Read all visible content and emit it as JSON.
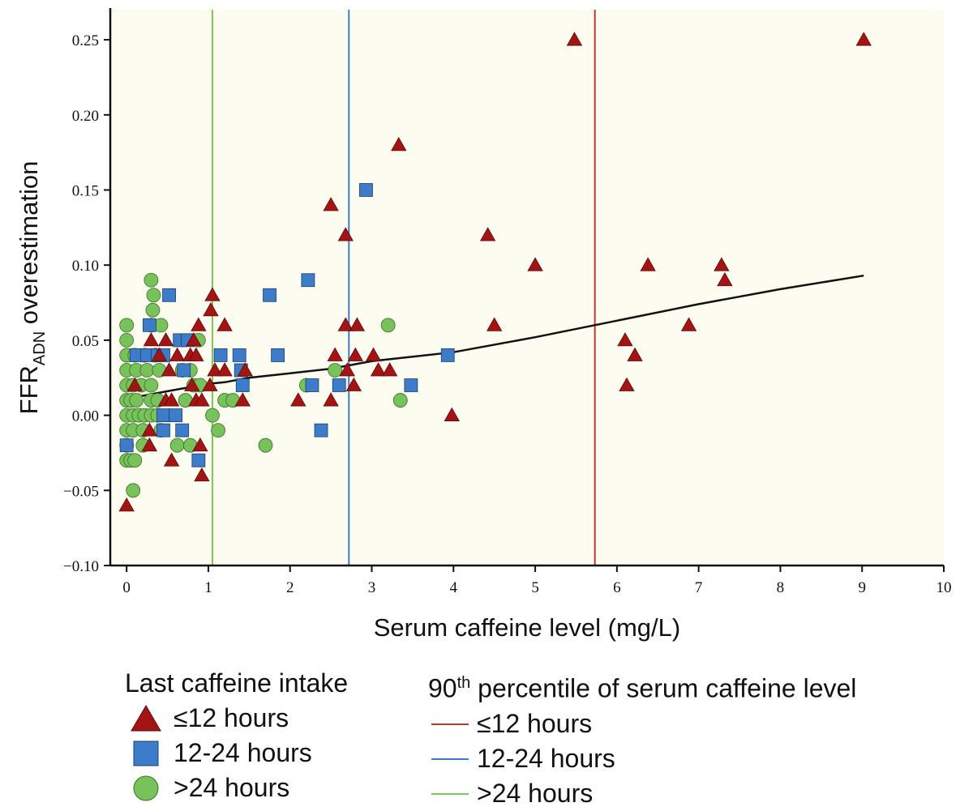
{
  "chart_data": {
    "type": "scatter",
    "xlabel": "Serum caffeine level (mg/L)",
    "ylabel_main": "FFR",
    "ylabel_sub": "ADN",
    "ylabel_rest": " overestimation",
    "xlim": [
      -0.2,
      10
    ],
    "ylim": [
      -0.1,
      0.27
    ],
    "xticks": [
      0,
      1,
      2,
      3,
      4,
      5,
      6,
      7,
      8,
      9,
      10
    ],
    "yticks": [
      -0.1,
      -0.05,
      0.0,
      0.05,
      0.1,
      0.15,
      0.2,
      0.25
    ],
    "xtick_labels": [
      "0",
      "1",
      "2",
      "3",
      "4",
      "5",
      "6",
      "7",
      "8",
      "9",
      "10"
    ],
    "ytick_labels": [
      "−0.10",
      "−0.05",
      "0.00",
      "0.05",
      "0.10",
      "0.15",
      "0.20",
      "0.25"
    ],
    "plot_background": "#fdfcf0",
    "series": [
      {
        "name": "≤12 hours",
        "marker": "triangle",
        "color": "#a31515",
        "points": [
          [
            5.48,
            0.25
          ],
          [
            9.02,
            0.25
          ],
          [
            3.33,
            0.18
          ],
          [
            2.5,
            0.14
          ],
          [
            2.68,
            0.12
          ],
          [
            4.42,
            0.12
          ],
          [
            5.0,
            0.1
          ],
          [
            6.38,
            0.1
          ],
          [
            7.28,
            0.1
          ],
          [
            7.32,
            0.09
          ],
          [
            1.05,
            0.08
          ],
          [
            1.03,
            0.07
          ],
          [
            0.88,
            0.06
          ],
          [
            1.2,
            0.06
          ],
          [
            2.68,
            0.06
          ],
          [
            2.82,
            0.06
          ],
          [
            4.5,
            0.06
          ],
          [
            6.88,
            0.06
          ],
          [
            6.1,
            0.05
          ],
          [
            0.3,
            0.05
          ],
          [
            0.48,
            0.05
          ],
          [
            0.82,
            0.05
          ],
          [
            6.22,
            0.04
          ],
          [
            0.62,
            0.04
          ],
          [
            0.78,
            0.04
          ],
          [
            0.85,
            0.04
          ],
          [
            2.55,
            0.04
          ],
          [
            2.8,
            0.04
          ],
          [
            3.02,
            0.04
          ],
          [
            0.4,
            0.04
          ],
          [
            1.08,
            0.03
          ],
          [
            1.2,
            0.03
          ],
          [
            1.45,
            0.03
          ],
          [
            3.08,
            0.03
          ],
          [
            3.22,
            0.03
          ],
          [
            2.7,
            0.03
          ],
          [
            0.52,
            0.03
          ],
          [
            6.12,
            0.02
          ],
          [
            2.78,
            0.02
          ],
          [
            1.02,
            0.02
          ],
          [
            0.8,
            0.02
          ],
          [
            0.1,
            0.02
          ],
          [
            1.42,
            0.01
          ],
          [
            2.1,
            0.01
          ],
          [
            2.5,
            0.01
          ],
          [
            0.85,
            0.01
          ],
          [
            0.92,
            0.01
          ],
          [
            0.48,
            0.01
          ],
          [
            0.55,
            0.01
          ],
          [
            3.98,
            0.0
          ],
          [
            0.28,
            -0.01
          ],
          [
            0.9,
            -0.02
          ],
          [
            0.28,
            -0.02
          ],
          [
            0.55,
            -0.03
          ],
          [
            0.92,
            -0.04
          ],
          [
            0.0,
            -0.06
          ]
        ]
      },
      {
        "name": "12-24 hours",
        "marker": "square",
        "color": "#3d7cc9",
        "points": [
          [
            2.93,
            0.15
          ],
          [
            2.22,
            0.09
          ],
          [
            0.52,
            0.08
          ],
          [
            1.75,
            0.08
          ],
          [
            0.28,
            0.06
          ],
          [
            0.65,
            0.05
          ],
          [
            0.75,
            0.05
          ],
          [
            0.12,
            0.04
          ],
          [
            0.25,
            0.04
          ],
          [
            0.38,
            0.04
          ],
          [
            0.45,
            0.04
          ],
          [
            1.38,
            0.04
          ],
          [
            1.85,
            0.04
          ],
          [
            3.93,
            0.04
          ],
          [
            1.15,
            0.04
          ],
          [
            1.4,
            0.03
          ],
          [
            0.7,
            0.03
          ],
          [
            1.42,
            0.02
          ],
          [
            2.27,
            0.02
          ],
          [
            2.6,
            0.02
          ],
          [
            3.48,
            0.02
          ],
          [
            0.45,
            0.0
          ],
          [
            0.6,
            0.0
          ],
          [
            2.38,
            -0.01
          ],
          [
            0.45,
            -0.01
          ],
          [
            0.68,
            -0.01
          ],
          [
            0.0,
            -0.02
          ],
          [
            0.88,
            -0.03
          ]
        ]
      },
      {
        "name": ">24 hours",
        "marker": "circle",
        "color": "#77c25a",
        "points": [
          [
            0.3,
            0.09
          ],
          [
            0.33,
            0.08
          ],
          [
            0.32,
            0.07
          ],
          [
            0.0,
            0.06
          ],
          [
            0.3,
            0.06
          ],
          [
            0.42,
            0.06
          ],
          [
            3.2,
            0.06
          ],
          [
            0.0,
            0.05
          ],
          [
            0.88,
            0.05
          ],
          [
            0.0,
            0.04
          ],
          [
            0.1,
            0.04
          ],
          [
            0.22,
            0.04
          ],
          [
            0.35,
            0.04
          ],
          [
            0.0,
            0.03
          ],
          [
            0.12,
            0.03
          ],
          [
            0.25,
            0.03
          ],
          [
            0.4,
            0.03
          ],
          [
            0.68,
            0.03
          ],
          [
            0.78,
            0.03
          ],
          [
            2.55,
            0.03
          ],
          [
            0.0,
            0.02
          ],
          [
            0.08,
            0.02
          ],
          [
            0.18,
            0.02
          ],
          [
            0.3,
            0.02
          ],
          [
            0.82,
            0.02
          ],
          [
            0.9,
            0.02
          ],
          [
            2.2,
            0.02
          ],
          [
            0.0,
            0.01
          ],
          [
            0.05,
            0.01
          ],
          [
            0.12,
            0.01
          ],
          [
            0.3,
            0.01
          ],
          [
            0.38,
            0.01
          ],
          [
            0.72,
            0.01
          ],
          [
            1.2,
            0.01
          ],
          [
            1.3,
            0.01
          ],
          [
            3.35,
            0.01
          ],
          [
            0.0,
            0.0
          ],
          [
            0.08,
            0.0
          ],
          [
            0.15,
            0.0
          ],
          [
            0.22,
            0.0
          ],
          [
            0.3,
            0.0
          ],
          [
            0.38,
            0.0
          ],
          [
            1.05,
            0.0
          ],
          [
            0.0,
            -0.01
          ],
          [
            0.08,
            -0.01
          ],
          [
            0.2,
            -0.01
          ],
          [
            0.42,
            -0.01
          ],
          [
            1.12,
            -0.01
          ],
          [
            0.0,
            -0.02
          ],
          [
            0.2,
            -0.02
          ],
          [
            0.62,
            -0.02
          ],
          [
            0.78,
            -0.02
          ],
          [
            1.7,
            -0.02
          ],
          [
            0.0,
            -0.03
          ],
          [
            0.05,
            -0.03
          ],
          [
            0.1,
            -0.03
          ],
          [
            0.08,
            -0.05
          ]
        ]
      }
    ],
    "trend_line": {
      "points": [
        [
          0.0,
          0.012
        ],
        [
          0.2,
          0.013
        ],
        [
          0.5,
          0.016
        ],
        [
          0.8,
          0.019
        ],
        [
          1.0,
          0.021
        ],
        [
          1.2,
          0.022
        ],
        [
          1.5,
          0.025
        ],
        [
          2.0,
          0.028
        ],
        [
          2.5,
          0.031
        ],
        [
          3.0,
          0.036
        ],
        [
          3.5,
          0.039
        ],
        [
          4.0,
          0.042
        ],
        [
          5.0,
          0.052
        ],
        [
          6.0,
          0.063
        ],
        [
          7.0,
          0.074
        ],
        [
          8.0,
          0.084
        ],
        [
          9.02,
          0.093
        ]
      ],
      "color": "#111111"
    },
    "percentile_lines": [
      {
        "name": "≤12 hours",
        "x": 5.73,
        "color": "#c0392b"
      },
      {
        "name": "12-24 hours",
        "x": 2.72,
        "color": "#3d7cc9"
      },
      {
        "name": ">24 hours",
        "x": 1.05,
        "color": "#7ec75a"
      }
    ],
    "legend": {
      "intake_title": "Last caffeine intake",
      "percentile_title_num": "90",
      "percentile_title_sup": "th",
      "percentile_title_rest": " percentile of serum caffeine level",
      "items": [
        "≤12 hours",
        "12-24 hours",
        ">24 hours"
      ]
    }
  }
}
